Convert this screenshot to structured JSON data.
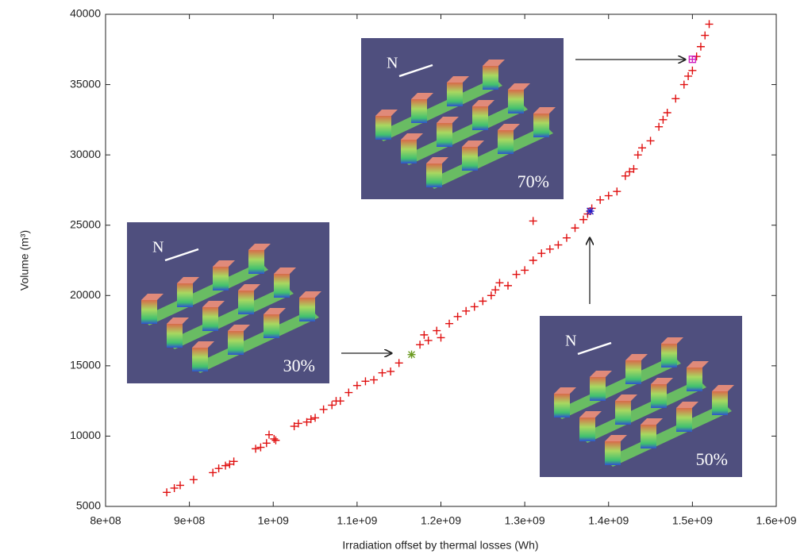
{
  "chart_data": {
    "type": "scatter",
    "x_label": "Irradiation offset by thermal losses (Wh)",
    "y_label": "Volume (m³)",
    "xlim": [
      800000000,
      1600000000
    ],
    "xticks": [
      {
        "value": 800000000,
        "label": "8e+08"
      },
      {
        "value": 900000000,
        "label": "9e+08"
      },
      {
        "value": 1000000000,
        "label": "1e+09"
      },
      {
        "value": 1100000000,
        "label": "1.1e+09"
      },
      {
        "value": 1200000000,
        "label": "1.2e+09"
      },
      {
        "value": 1300000000,
        "label": "1.3e+09"
      },
      {
        "value": 1400000000,
        "label": "1.4e+09"
      },
      {
        "value": 1500000000,
        "label": "1.5e+09"
      },
      {
        "value": 1600000000,
        "label": "1.6e+09"
      }
    ],
    "ylim": [
      5000,
      40000
    ],
    "yticks": [
      5000,
      10000,
      15000,
      20000,
      25000,
      30000,
      35000,
      40000
    ],
    "series": [
      {
        "color": "#e01010",
        "marker": "plus",
        "x": [
          873000000,
          882000000,
          889000000,
          905000000,
          928000000,
          935000000,
          943000000,
          948000000,
          953000000,
          979000000,
          985000000,
          992000000,
          995000000,
          1001000000,
          1003000000,
          1025000000,
          1030000000,
          1040000000,
          1045000000,
          1050000000,
          1060000000,
          1070000000,
          1075000000,
          1080000000,
          1090000000,
          1100000000,
          1110000000,
          1120000000,
          1130000000,
          1140000000,
          1150000000,
          1175000000,
          1180000000,
          1185000000,
          1195000000,
          1200000000,
          1210000000,
          1220000000,
          1230000000,
          1240000000,
          1250000000,
          1260000000,
          1265000000,
          1270000000,
          1280000000,
          1290000000,
          1300000000,
          1310000000,
          1310000000,
          1320000000,
          1330000000,
          1340000000,
          1350000000,
          1360000000,
          1370000000,
          1375000000,
          1380000000,
          1390000000,
          1400000000,
          1410000000,
          1420000000,
          1425000000,
          1430000000,
          1435000000,
          1440000000,
          1450000000,
          1460000000,
          1465000000,
          1470000000,
          1480000000,
          1490000000,
          1495000000,
          1500000000,
          1505000000,
          1510000000,
          1515000000,
          1520000000
        ],
        "values": [
          6000,
          6300,
          6500,
          6900,
          7400,
          7700,
          7900,
          8000,
          8200,
          9100,
          9200,
          9500,
          10100,
          9800,
          9700,
          10700,
          10900,
          11000,
          11200,
          11300,
          11900,
          12200,
          12500,
          12500,
          13100,
          13600,
          13900,
          14000,
          14500,
          14600,
          15200,
          16500,
          17200,
          16800,
          17500,
          17000,
          18000,
          18500,
          18900,
          19200,
          19600,
          20000,
          20400,
          20900,
          20700,
          21500,
          21800,
          22500,
          25300,
          23000,
          23300,
          23600,
          24100,
          24800,
          25400,
          25800,
          26200,
          26800,
          27100,
          27400,
          28500,
          28800,
          29000,
          30000,
          30500,
          31000,
          32000,
          32500,
          33000,
          34000,
          35000,
          35600,
          36000,
          37000,
          37700,
          38500,
          39300
        ]
      },
      {
        "color": "#6a9a20",
        "marker": "star",
        "x": [
          1165000000
        ],
        "values": [
          15800
        ]
      },
      {
        "color": "#2020d0",
        "marker": "star",
        "x": [
          1378000000
        ],
        "values": [
          26000
        ]
      },
      {
        "color": "#d020c0",
        "marker": "square",
        "x": [
          1500000000
        ],
        "values": [
          36800
        ]
      }
    ],
    "annotations": [
      {
        "north": "N",
        "text": "30%"
      },
      {
        "north": "N",
        "text": "70%"
      },
      {
        "north": "N",
        "text": "50%"
      }
    ]
  }
}
